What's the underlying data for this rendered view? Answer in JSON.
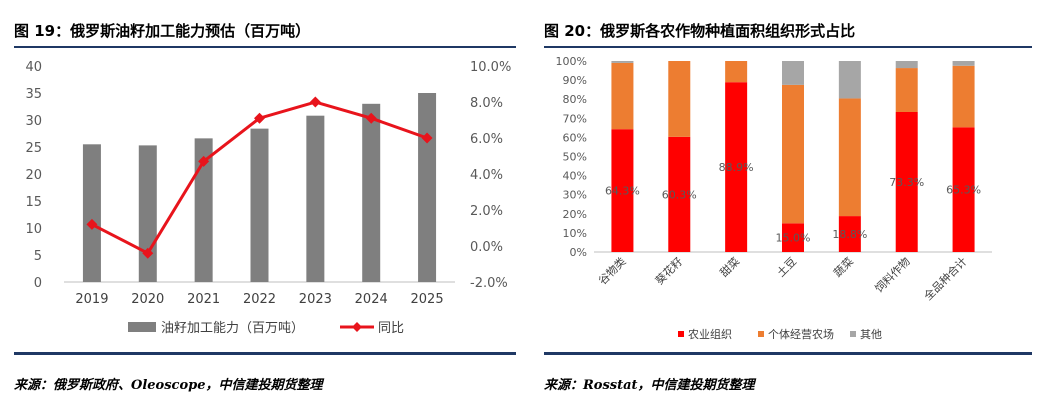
{
  "figures": {
    "left_title": "图 19：俄罗斯油籽加工能力预估（百万吨）",
    "right_title": "图 20：俄罗斯各农作物种植面积组织形式占比",
    "left_source": "来源：俄罗斯政府、Oleoscope，中信建投期货整理",
    "right_source": "来源：Rosstat，中信建投期货整理"
  },
  "colors": {
    "rule": "#1f3864",
    "bar_gray": "#7f7f7f",
    "line_red": "#e8141c",
    "stack_red": "#ff0000",
    "stack_orange": "#ed7d31",
    "stack_gray": "#a6a6a6"
  },
  "chart_data": [
    {
      "type": "bar",
      "combo_line": true,
      "categories": [
        "2019",
        "2020",
        "2021",
        "2022",
        "2023",
        "2024",
        "2025"
      ],
      "series": [
        {
          "name": "油籽加工能力（百万吨）",
          "type": "bar",
          "axis": "left",
          "values": [
            25.5,
            25.3,
            26.6,
            28.4,
            30.8,
            33.0,
            35.0
          ]
        },
        {
          "name": "同比",
          "type": "line",
          "axis": "right",
          "values": [
            1.2,
            -0.4,
            4.7,
            7.1,
            8.0,
            7.1,
            6.0
          ]
        }
      ],
      "y_left": {
        "range": [
          0,
          40
        ],
        "ticks": [
          "0",
          "5",
          "10",
          "15",
          "20",
          "25",
          "30",
          "35",
          "40"
        ]
      },
      "y_right": {
        "range": [
          -2,
          10
        ],
        "ticks": [
          "-2.0%",
          "0.0%",
          "2.0%",
          "4.0%",
          "6.0%",
          "8.0%",
          "10.0%"
        ]
      },
      "legend_position": "bottom",
      "grid": false
    },
    {
      "type": "bar",
      "stacked": true,
      "categories": [
        "谷物类",
        "葵花籽",
        "甜菜",
        "土豆",
        "蔬菜",
        "饲料作物",
        "全品种合计"
      ],
      "series": [
        {
          "name": "农业组织",
          "values": [
            64.3,
            60.3,
            88.9,
            15.0,
            18.8,
            73.3,
            65.3
          ]
        },
        {
          "name": "个体经营农场",
          "values": [
            34.7,
            39.7,
            11.1,
            72.5,
            61.6,
            23.0,
            32.2
          ]
        },
        {
          "name": "其他",
          "values": [
            1.0,
            0.0,
            0.0,
            12.5,
            19.6,
            3.7,
            2.5
          ]
        }
      ],
      "data_labels": [
        "64.3%",
        "60.3%",
        "88.9%",
        "15.0%",
        "18.8%",
        "73.3%",
        "65.3%"
      ],
      "y_ticks": [
        "0%",
        "10%",
        "20%",
        "30%",
        "40%",
        "50%",
        "60%",
        "70%",
        "80%",
        "90%",
        "100%"
      ],
      "ylim": [
        0,
        100
      ],
      "legend_position": "bottom",
      "grid": false
    }
  ]
}
